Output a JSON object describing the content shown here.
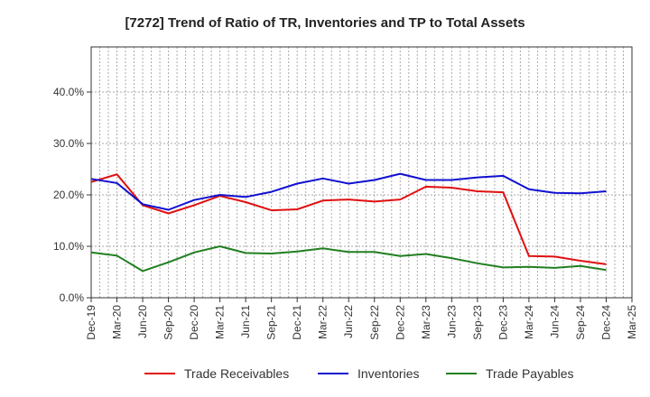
{
  "chart_data": {
    "type": "line",
    "title": "[7272]  Trend of Ratio of TR, Inventories and TP to Total Assets",
    "xlabel": "",
    "ylabel": "",
    "ylim": [
      0,
      0.4877
    ],
    "yticks": [
      0.0,
      0.1,
      0.2,
      0.3,
      0.4
    ],
    "ytick_labels": [
      "0.0%",
      "10.0%",
      "20.0%",
      "30.0%",
      "40.0%"
    ],
    "grid": true,
    "legend_position": "bottom",
    "x_tick_labels": [
      "Dec-19",
      "Mar-20",
      "Jun-20",
      "Sep-20",
      "Dec-20",
      "Mar-21",
      "Jun-21",
      "Sep-21",
      "Dec-21",
      "Mar-22",
      "Jun-22",
      "Sep-22",
      "Dec-22",
      "Mar-23",
      "Jun-23",
      "Sep-23",
      "Dec-23",
      "Mar-24",
      "Jun-24",
      "Sep-24",
      "Dec-24",
      "Mar-25"
    ],
    "x": [
      "2019-12",
      "2020-01",
      "2020-02",
      "2020-03",
      "2020-04",
      "2020-05",
      "2020-06",
      "2020-07",
      "2020-08",
      "2020-09",
      "2020-10",
      "2020-11",
      "2020-12",
      "2021-01",
      "2021-02",
      "2021-03",
      "2021-04",
      "2021-05",
      "2021-06",
      "2021-07",
      "2021-08",
      "2021-09",
      "2021-10",
      "2021-11",
      "2021-12",
      "2022-01",
      "2022-02",
      "2022-03",
      "2022-04",
      "2022-05",
      "2022-06",
      "2022-07",
      "2022-08",
      "2022-09",
      "2022-10",
      "2022-11",
      "2022-12",
      "2023-01",
      "2023-02",
      "2023-03",
      "2023-04",
      "2023-05",
      "2023-06",
      "2023-07",
      "2023-08",
      "2023-09",
      "2023-10",
      "2023-11",
      "2023-12",
      "2024-01",
      "2024-02",
      "2024-03",
      "2024-04",
      "2024-05",
      "2024-06",
      "2024-07",
      "2024-08",
      "2024-09",
      "2024-10",
      "2024-11",
      "2024-12",
      "2025-01",
      "2025-02",
      "2025-03"
    ],
    "series": [
      {
        "name": "Trade Receivables",
        "color": "#e01010",
        "points": [
          [
            "2019-12",
            0.225
          ],
          [
            "2020-03",
            0.24
          ],
          [
            "2020-06",
            0.18
          ],
          [
            "2020-09",
            0.164
          ],
          [
            "2020-12",
            0.18
          ],
          [
            "2021-03",
            0.198
          ],
          [
            "2021-06",
            0.186
          ],
          [
            "2021-09",
            0.17
          ],
          [
            "2021-12",
            0.172
          ],
          [
            "2022-03",
            0.189
          ],
          [
            "2022-06",
            0.191
          ],
          [
            "2022-09",
            0.187
          ],
          [
            "2022-12",
            0.191
          ],
          [
            "2023-03",
            0.216
          ],
          [
            "2023-06",
            0.214
          ],
          [
            "2023-09",
            0.207
          ],
          [
            "2023-12",
            0.205
          ],
          [
            "2024-03",
            0.081
          ],
          [
            "2024-06",
            0.08
          ],
          [
            "2024-09",
            0.072
          ],
          [
            "2024-12",
            0.065
          ]
        ]
      },
      {
        "name": "Inventories",
        "color": "#1010d0",
        "points": [
          [
            "2019-12",
            0.231
          ],
          [
            "2020-03",
            0.223
          ],
          [
            "2020-06",
            0.182
          ],
          [
            "2020-09",
            0.171
          ],
          [
            "2020-12",
            0.19
          ],
          [
            "2021-03",
            0.2
          ],
          [
            "2021-06",
            0.196
          ],
          [
            "2021-09",
            0.206
          ],
          [
            "2021-12",
            0.222
          ],
          [
            "2022-03",
            0.232
          ],
          [
            "2022-06",
            0.222
          ],
          [
            "2022-09",
            0.229
          ],
          [
            "2022-12",
            0.241
          ],
          [
            "2023-03",
            0.229
          ],
          [
            "2023-06",
            0.229
          ],
          [
            "2023-09",
            0.234
          ],
          [
            "2023-12",
            0.237
          ],
          [
            "2024-03",
            0.211
          ],
          [
            "2024-06",
            0.204
          ],
          [
            "2024-09",
            0.203
          ],
          [
            "2024-12",
            0.207
          ]
        ]
      },
      {
        "name": "Trade Payables",
        "color": "#208020",
        "points": [
          [
            "2019-12",
            0.088
          ],
          [
            "2020-03",
            0.082
          ],
          [
            "2020-06",
            0.052
          ],
          [
            "2020-09",
            0.069
          ],
          [
            "2020-12",
            0.088
          ],
          [
            "2021-03",
            0.1
          ],
          [
            "2021-06",
            0.087
          ],
          [
            "2021-09",
            0.086
          ],
          [
            "2021-12",
            0.09
          ],
          [
            "2022-03",
            0.096
          ],
          [
            "2022-06",
            0.089
          ],
          [
            "2022-09",
            0.089
          ],
          [
            "2022-12",
            0.081
          ],
          [
            "2023-03",
            0.085
          ],
          [
            "2023-06",
            0.077
          ],
          [
            "2023-09",
            0.067
          ],
          [
            "2023-12",
            0.059
          ],
          [
            "2024-03",
            0.06
          ],
          [
            "2024-06",
            0.058
          ],
          [
            "2024-09",
            0.062
          ],
          [
            "2024-12",
            0.054
          ]
        ]
      }
    ]
  }
}
